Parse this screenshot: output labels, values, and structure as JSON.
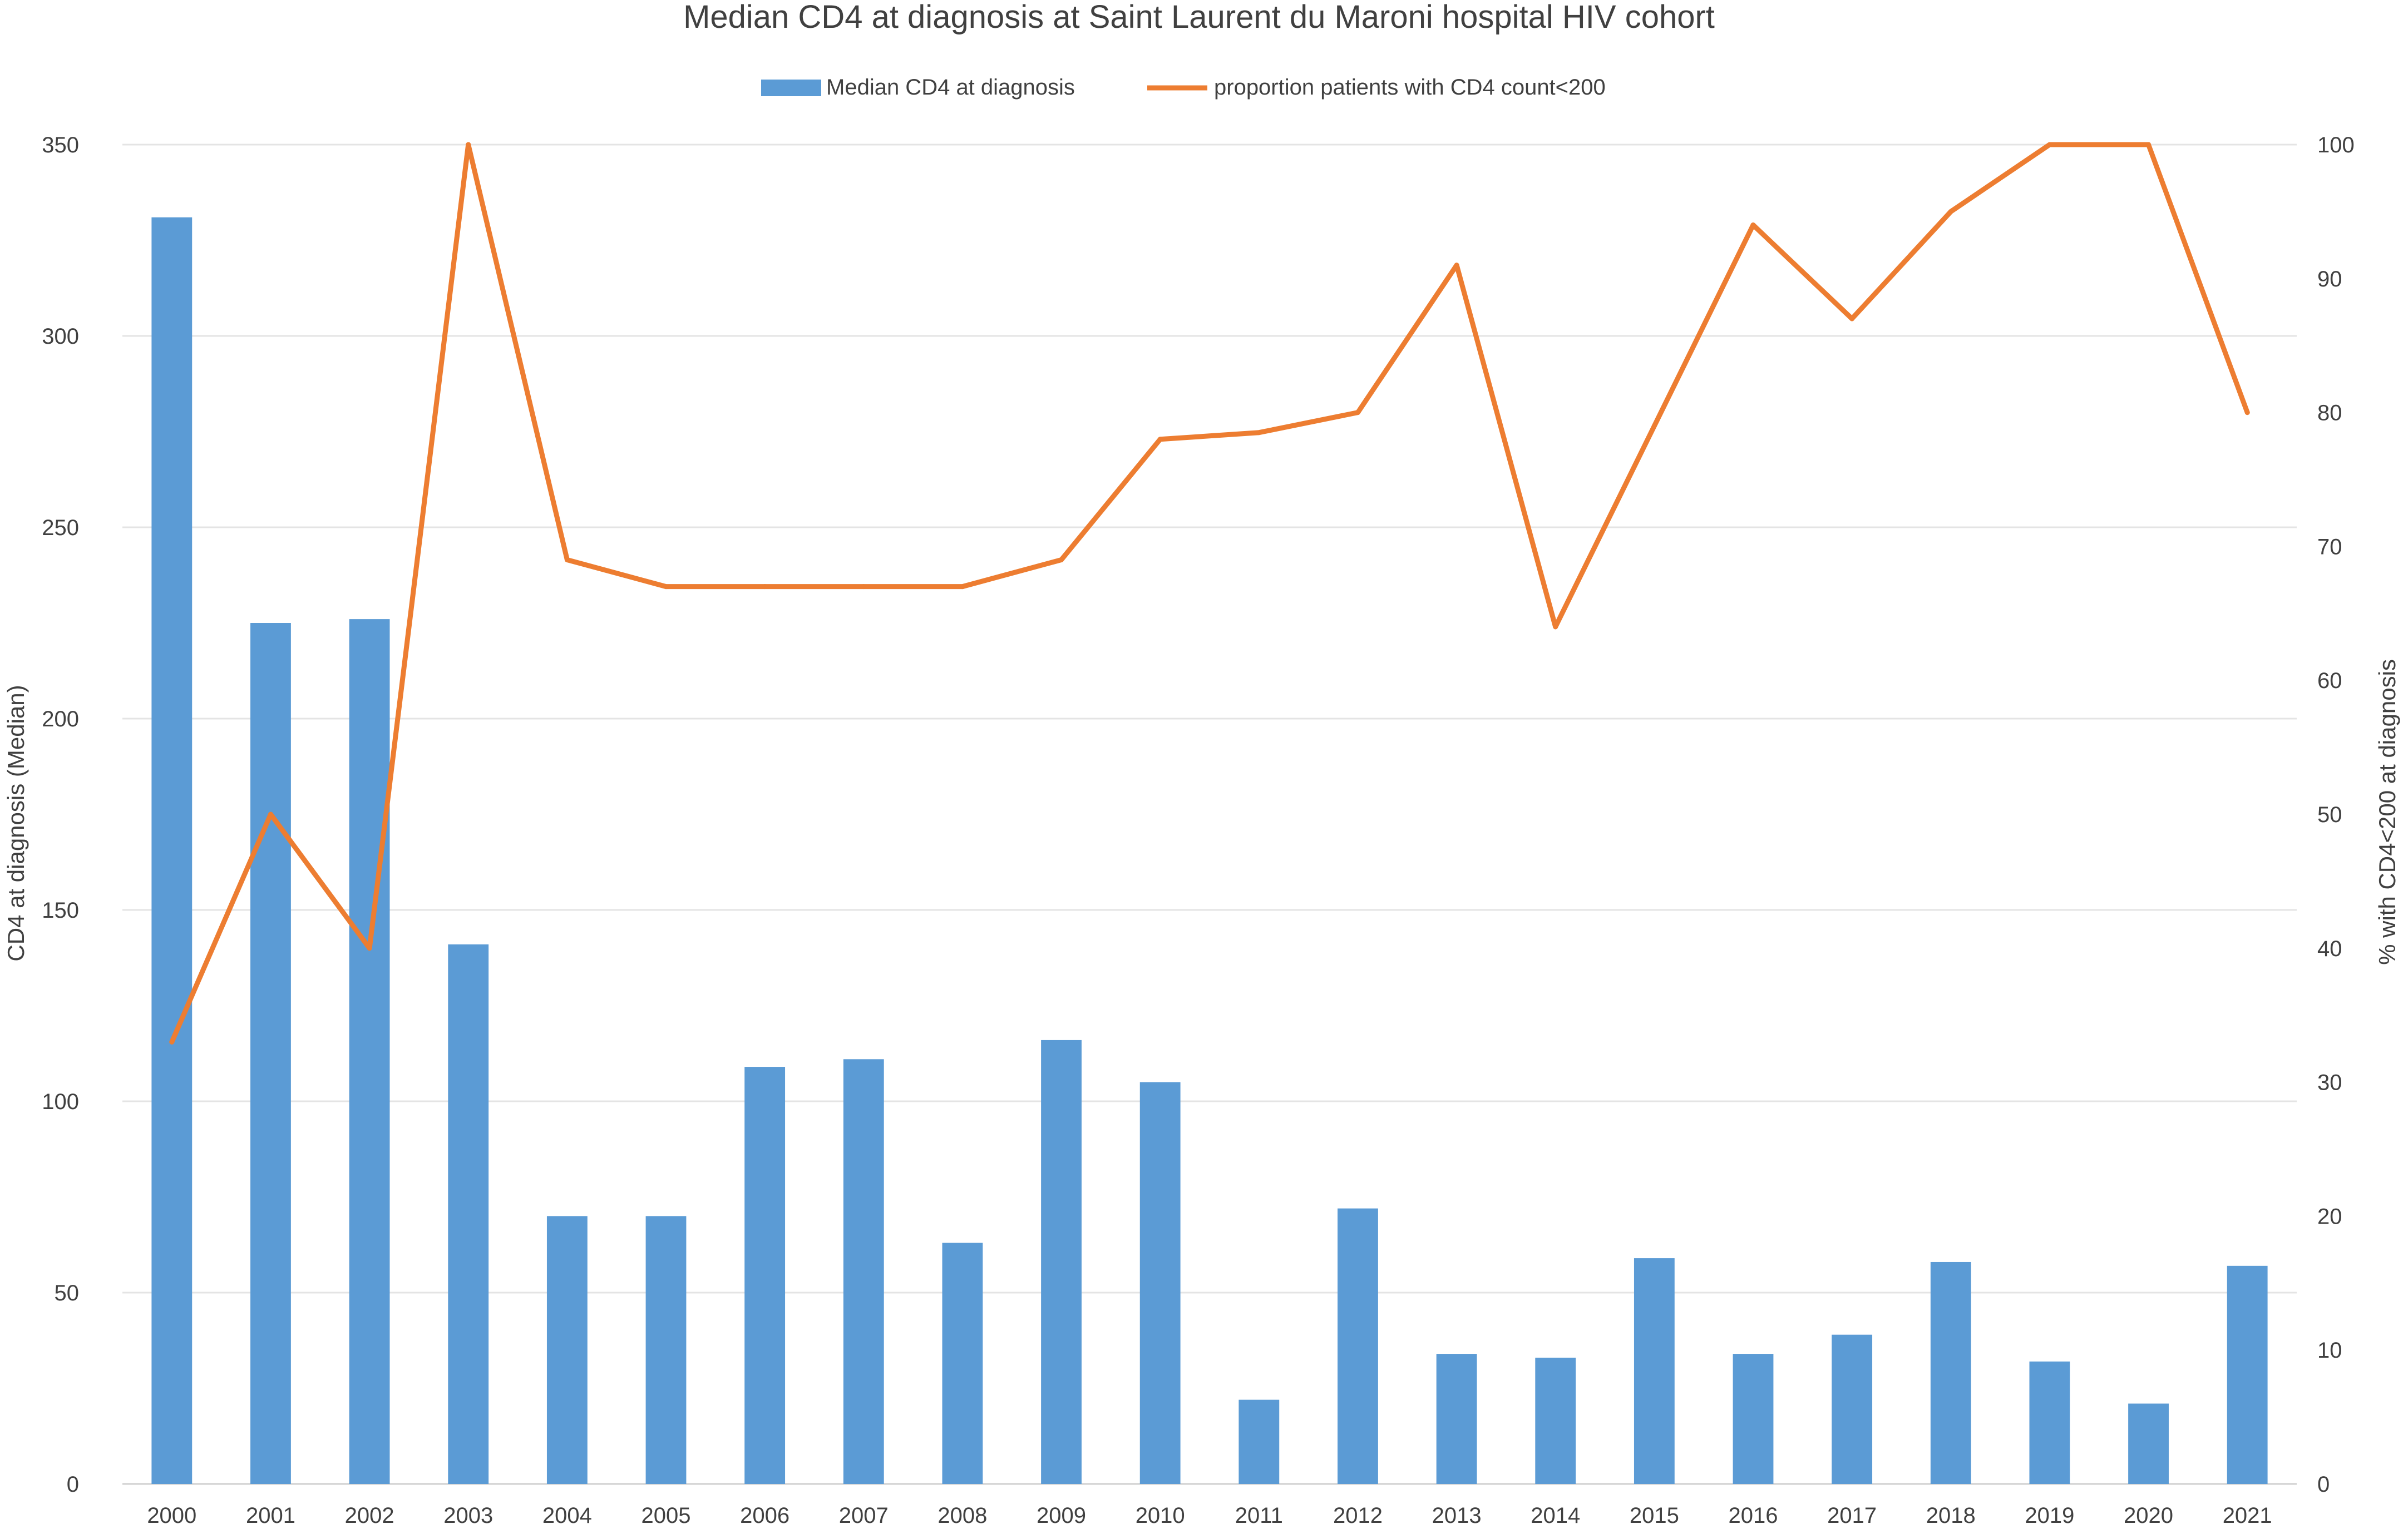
{
  "chart_data": {
    "type": "bar",
    "title": "Median CD4 at diagnosis at Saint Laurent du Maroni hospital HIV cohort",
    "ylabel": "CD4 at diagnosis (Median)",
    "y2label": "% with CD4<200 at diagnosis",
    "ylim": [
      0,
      350
    ],
    "y2lim": [
      0,
      100
    ],
    "yticks": [
      0,
      50,
      100,
      150,
      200,
      250,
      300,
      350
    ],
    "y2ticks": [
      0,
      10,
      20,
      30,
      40,
      50,
      60,
      70,
      80,
      90,
      100
    ],
    "grid": true,
    "legend_position": "top-center",
    "categories": [
      "2000",
      "2001",
      "2002",
      "2003",
      "2004",
      "2005",
      "2006",
      "2007",
      "2008",
      "2009",
      "2010",
      "2011",
      "2012",
      "2013",
      "2014",
      "2015",
      "2016",
      "2017",
      "2018",
      "2019",
      "2020",
      "2021"
    ],
    "series": [
      {
        "name": "Median CD4 at diagnosis",
        "type": "bar",
        "axis": "left",
        "color": "#5b9bd5",
        "values": [
          331,
          225,
          226,
          141,
          70,
          70,
          109,
          111,
          63,
          116,
          105,
          22,
          72,
          34,
          33,
          59,
          34,
          39,
          58,
          32,
          21,
          57
        ]
      },
      {
        "name": "proportion patients with CD4 count<200",
        "type": "line",
        "axis": "right",
        "color": "#ed7d31",
        "values": [
          33,
          50,
          40,
          100,
          69,
          67,
          67,
          67,
          67,
          69,
          78,
          78.5,
          80,
          91,
          64,
          79,
          94,
          87,
          95,
          100,
          100,
          80
        ]
      }
    ]
  }
}
